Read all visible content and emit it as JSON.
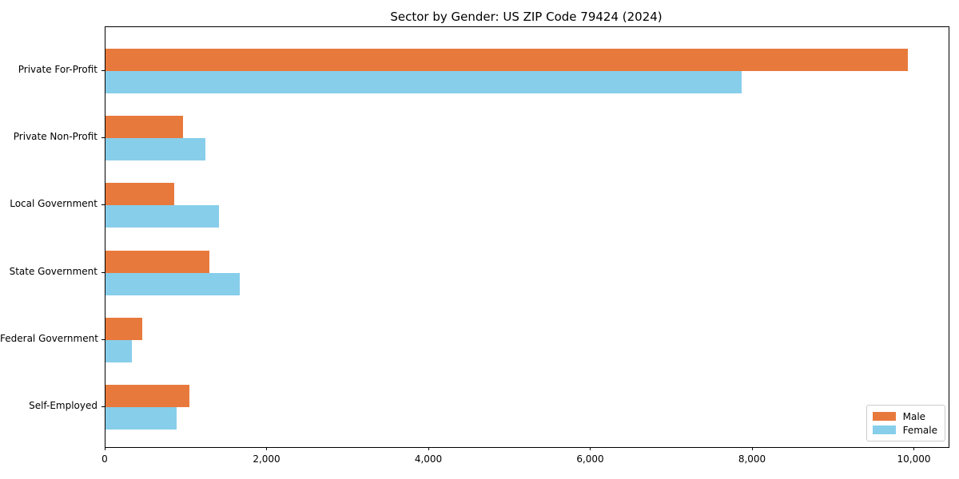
{
  "title": "Sector by Gender: US ZIP Code 79424 (2024)",
  "chart_data": {
    "type": "bar",
    "orientation": "horizontal",
    "title": "Sector by Gender: US ZIP Code 79424 (2024)",
    "categories": [
      "Private For-Profit",
      "Private Non-Profit",
      "Local Government",
      "State Government",
      "Federal Government",
      "Self-Employed"
    ],
    "series": [
      {
        "name": "Male",
        "color": "#e8793c",
        "values": [
          9920,
          960,
          850,
          1285,
          450,
          1035
        ]
      },
      {
        "name": "Female",
        "color": "#87ceeb",
        "values": [
          7860,
          1235,
          1400,
          1660,
          330,
          880
        ]
      }
    ],
    "xlabel": "",
    "ylabel": "",
    "xlim": [
      0,
      10420
    ],
    "xticks": [
      0,
      2000,
      4000,
      6000,
      8000,
      10000
    ],
    "xtick_labels": [
      "0",
      "2,000",
      "4,000",
      "6,000",
      "8,000",
      "10,000"
    ],
    "grid": false,
    "legend_position": "lower right"
  },
  "legend": {
    "items": [
      {
        "label": "Male",
        "color": "#e8793c"
      },
      {
        "label": "Female",
        "color": "#87ceeb"
      }
    ]
  }
}
